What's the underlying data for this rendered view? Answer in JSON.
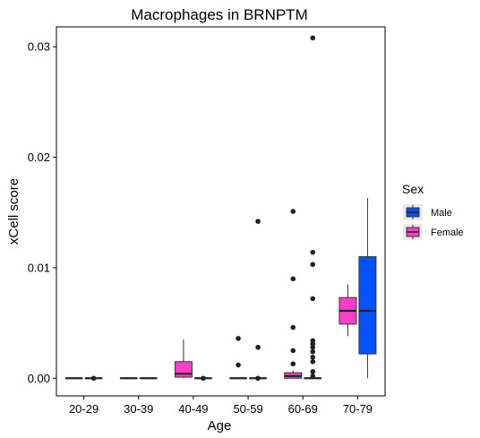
{
  "chart_data": {
    "type": "boxplot",
    "title": "Macrophages in BRNPTM",
    "xlabel": "Age",
    "ylabel": "xCell score",
    "ylim": [
      -0.0016,
      0.0318
    ],
    "yticks": [
      {
        "value": 0.0,
        "label": "0.00"
      },
      {
        "value": 0.01,
        "label": "0.01"
      },
      {
        "value": 0.02,
        "label": "0.02"
      },
      {
        "value": 0.03,
        "label": "0.03"
      }
    ],
    "categories": [
      "20-29",
      "30-39",
      "40-49",
      "50-59",
      "60-69",
      "70-79"
    ],
    "legend": {
      "title": "Sex",
      "position": "right",
      "entries": [
        {
          "name": "Male",
          "color": "#0652ff"
        },
        {
          "name": "Female",
          "color": "#ff3fc8"
        }
      ]
    },
    "series": [
      {
        "name": "Female",
        "color": "#ff3fc8",
        "boxes": [
          {
            "category": "20-29",
            "min": 0,
            "q1": 0,
            "median": 0,
            "q3": 0,
            "max": 0,
            "outliers": []
          },
          {
            "category": "30-39",
            "min": 0,
            "q1": 0,
            "median": 0,
            "q3": 0,
            "max": 0,
            "outliers": []
          },
          {
            "category": "40-49",
            "min": 0,
            "q1": 0.0001,
            "median": 0.0004,
            "q3": 0.0015,
            "max": 0.0035,
            "outliers": []
          },
          {
            "category": "50-59",
            "min": 0,
            "q1": 0,
            "median": 0,
            "q3": 0,
            "max": 0,
            "outliers": [
              0.0036,
              0.0012
            ]
          },
          {
            "category": "60-69",
            "min": 0,
            "q1": 0,
            "median": 0.0002,
            "q3": 0.0005,
            "max": 0.0007,
            "outliers": [
              0.0151,
              0.009,
              0.0046,
              0.0025,
              0.0013
            ]
          },
          {
            "category": "70-79",
            "min": 0.0038,
            "q1": 0.0049,
            "median": 0.0061,
            "q3": 0.0073,
            "max": 0.0085,
            "outliers": []
          }
        ]
      },
      {
        "name": "Male",
        "color": "#0652ff",
        "boxes": [
          {
            "category": "20-29",
            "min": 0,
            "q1": 0,
            "median": 0,
            "q3": 0,
            "max": 0,
            "outliers": [
              0
            ]
          },
          {
            "category": "30-39",
            "min": 0,
            "q1": 0,
            "median": 0,
            "q3": 0,
            "max": 0,
            "outliers": []
          },
          {
            "category": "40-49",
            "min": 0,
            "q1": 0,
            "median": 0,
            "q3": 0,
            "max": 0,
            "outliers": [
              0
            ]
          },
          {
            "category": "50-59",
            "min": 0,
            "q1": 0,
            "median": 0,
            "q3": 0,
            "max": 0,
            "outliers": [
              0.0142,
              0.0028,
              0
            ]
          },
          {
            "category": "60-69",
            "min": 0,
            "q1": 0,
            "median": 0,
            "q3": 0,
            "max": 0,
            "outliers": [
              0.0308,
              0.0114,
              0.0103,
              0.0072,
              0.0034,
              0.0031,
              0.0028,
              0.0024,
              0.0019,
              0.0015,
              0.0006,
              0.0002
            ]
          },
          {
            "category": "70-79",
            "min": 0,
            "q1": 0.0022,
            "median": 0.0061,
            "q3": 0.011,
            "max": 0.0163,
            "outliers": []
          }
        ]
      }
    ]
  }
}
